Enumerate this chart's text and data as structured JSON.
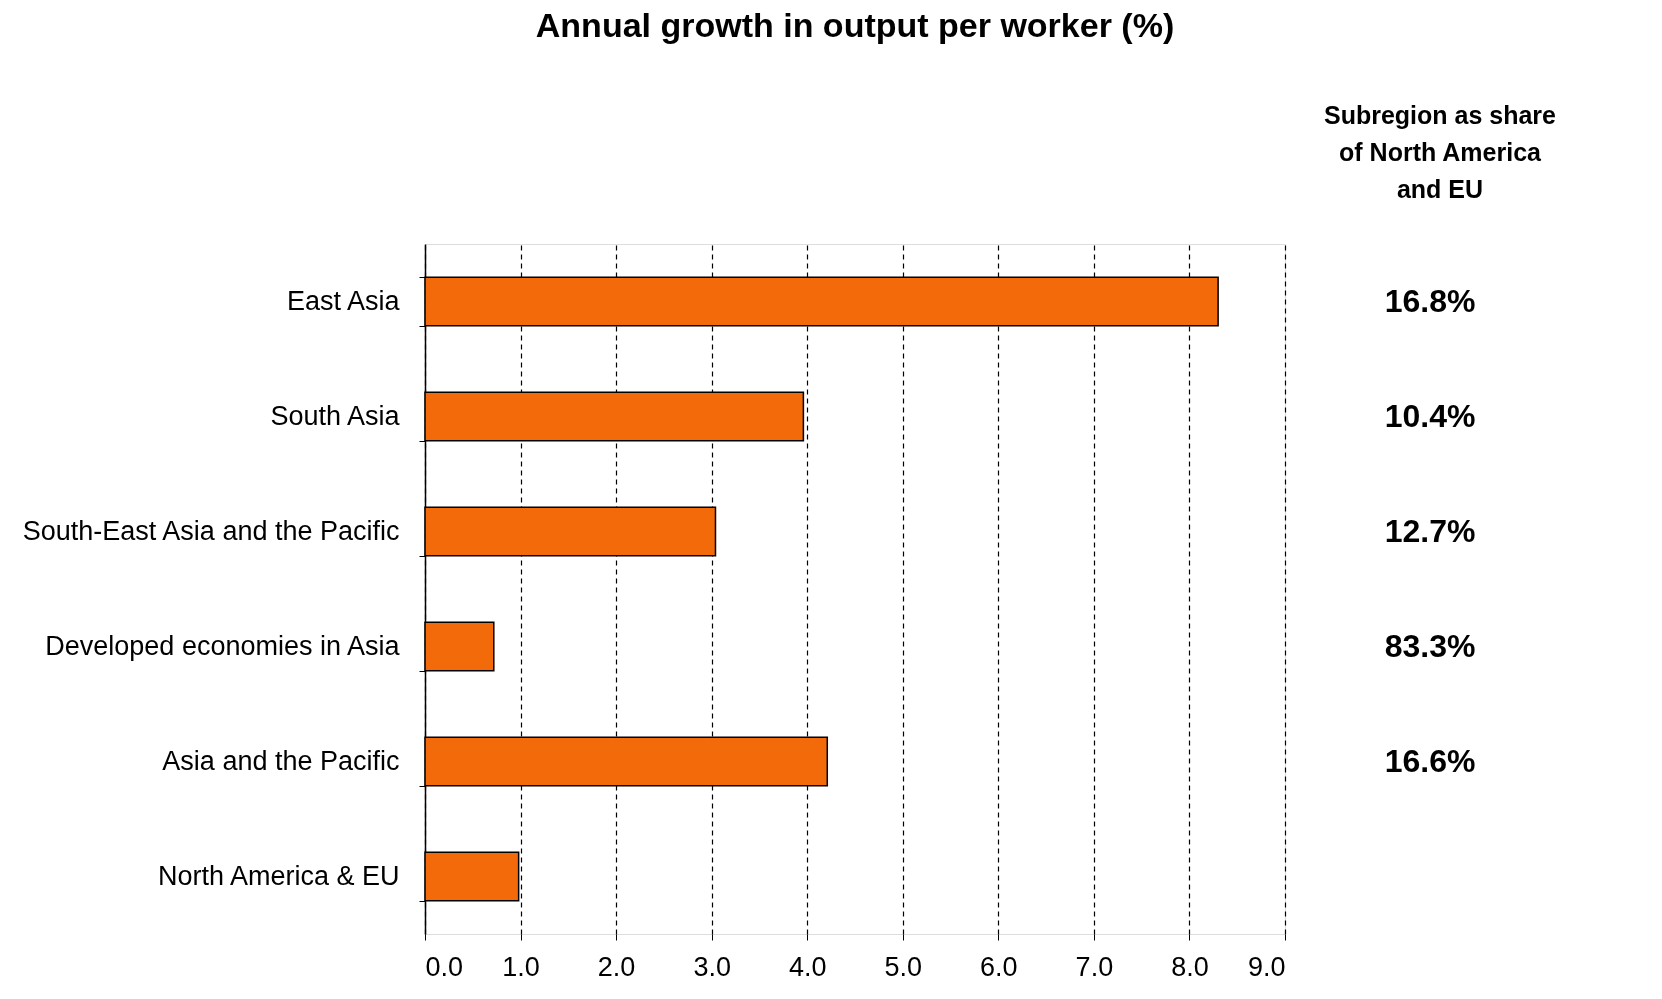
{
  "chart_data": {
    "type": "bar",
    "orientation": "horizontal",
    "title": "Annual growth in output per worker (%)",
    "categories": [
      "East Asia",
      "South Asia",
      "South-East Asia and the Pacific",
      "Developed economies in Asia",
      "Asia and the Pacific",
      "North America & EU"
    ],
    "values": [
      8.3,
      3.96,
      3.04,
      0.72,
      4.21,
      0.98
    ],
    "color": "#f26a0a",
    "xlim": [
      0,
      9
    ],
    "xticks": [
      {
        "value": 0,
        "label": "0.0"
      },
      {
        "value": 1,
        "label": "1.0"
      },
      {
        "value": 2,
        "label": "2.0"
      },
      {
        "value": 3,
        "label": "3.0"
      },
      {
        "value": 4,
        "label": "4.0"
      },
      {
        "value": 5,
        "label": "5.0"
      },
      {
        "value": 6,
        "label": "6.0"
      },
      {
        "value": 7,
        "label": "7.0"
      },
      {
        "value": 8,
        "label": "8.0"
      },
      {
        "value": 9,
        "label": "9.0"
      }
    ],
    "grid": "x",
    "annotations": [
      "Subregion as share of North America and EU",
      "16.8%",
      "10.4%",
      "12.7%",
      "83.3%",
      "16.6%"
    ]
  }
}
